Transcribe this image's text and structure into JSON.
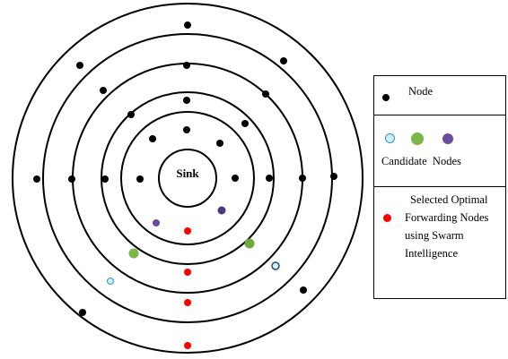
{
  "diagram": {
    "sink_label": "Sink",
    "colors": {
      "node": "#000000",
      "candidate_light_blue": "#cfeefb",
      "candidate_green": "#7ab648",
      "candidate_purple": "#6a4c9c",
      "optimal_red": "#ff0000"
    }
  },
  "legend": {
    "node_label": "Node",
    "candidate_label": "Candidate  Nodes",
    "optimal_lines": [
      "Selected Optimal",
      "Forwarding Nodes",
      "using Swarm",
      "Intelligence"
    ]
  }
}
